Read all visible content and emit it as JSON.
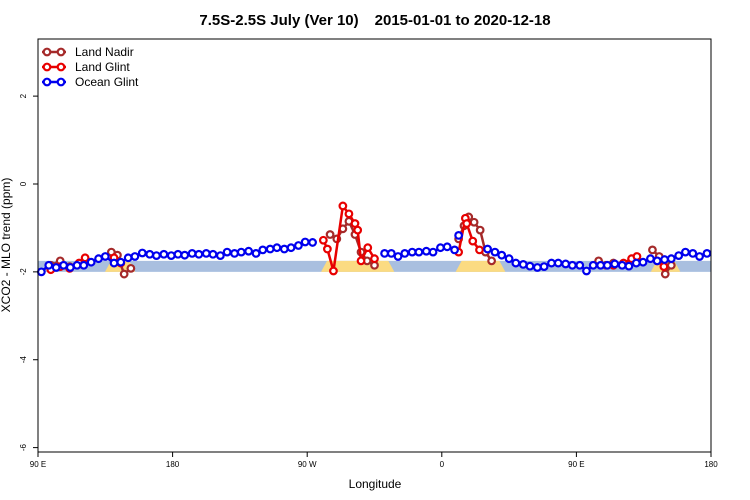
{
  "chart_data": {
    "type": "line",
    "title_part1": "7.5S-2.5S July (Ver 10)",
    "title_part2": "2015-01-01 to 2020-12-18",
    "xlabel": "Longitude",
    "ylabel": "XCO2 - MLO trend (ppm)",
    "xlim": [
      0,
      100
    ],
    "ylim": [
      -6.1,
      3.3
    ],
    "x_ticks": [
      {
        "pos": 0,
        "label": "90 E"
      },
      {
        "pos": 20,
        "label": "180"
      },
      {
        "pos": 40,
        "label": "90 W"
      },
      {
        "pos": 60,
        "label": "0"
      },
      {
        "pos": 80,
        "label": "90 E"
      },
      {
        "pos": 100,
        "label": "180"
      }
    ],
    "y_ticks": [
      {
        "value": 2,
        "label": "2"
      },
      {
        "value": 0,
        "label": "0"
      },
      {
        "value": -2,
        "label": "-2"
      },
      {
        "value": -4,
        "label": "-4"
      },
      {
        "value": -6,
        "label": "-6"
      }
    ],
    "legend": {
      "position": "top-left",
      "entries": [
        "Land Nadir",
        "Land Glint",
        "Ocean Glint"
      ]
    },
    "surface_band": {
      "y_range": [
        -2.0,
        -1.75
      ],
      "colors": {
        "ocean": "#a9bfdf",
        "land": "#fbdb82"
      },
      "land_segments": [
        [
          10.4,
          14
        ],
        [
          42.5,
          52.5
        ],
        [
          62.5,
          69
        ],
        [
          91.5,
          95
        ]
      ]
    },
    "series": [
      {
        "name": "Land Nadir",
        "color": "#a52a2a",
        "segments": [
          [
            [
              1.9,
              -1.85
            ],
            [
              3.3,
              -1.75
            ],
            [
              4.7,
              -1.88
            ],
            [
              6.1,
              -1.82
            ],
            [
              7.0,
              -1.73
            ]
          ],
          [
            [
              10.9,
              -1.55
            ],
            [
              11.8,
              -1.62
            ],
            [
              12.8,
              -2.05
            ],
            [
              13.8,
              -1.92
            ]
          ],
          [
            [
              43.4,
              -1.15
            ],
            [
              44.4,
              -1.25
            ],
            [
              45.3,
              -1.02
            ],
            [
              46.2,
              -0.85
            ],
            [
              47.1,
              -1.15
            ],
            [
              48.0,
              -1.55
            ],
            [
              48.9,
              -1.75
            ],
            [
              50.0,
              -1.85
            ]
          ],
          [
            [
              62.5,
              -1.25
            ],
            [
              63.3,
              -0.95
            ],
            [
              64.0,
              -0.75
            ],
            [
              64.8,
              -0.87
            ],
            [
              65.7,
              -1.05
            ],
            [
              66.5,
              -1.55
            ],
            [
              67.4,
              -1.75
            ]
          ],
          [
            [
              83.3,
              -1.75
            ],
            [
              84.4,
              -1.85
            ],
            [
              85.5,
              -1.8
            ]
          ],
          [
            [
              91.3,
              -1.5
            ],
            [
              92.3,
              -1.65
            ],
            [
              93.2,
              -2.05
            ],
            [
              94.1,
              -1.85
            ]
          ]
        ]
      },
      {
        "name": "Land Glint",
        "color": "#e80000",
        "segments": [
          [
            [
              1.9,
              -1.95
            ],
            [
              3.3,
              -1.88
            ],
            [
              4.7,
              -1.92
            ],
            [
              6.1,
              -1.8
            ],
            [
              7.0,
              -1.68
            ]
          ],
          [
            [
              11.3,
              -1.68
            ],
            [
              12.3,
              -1.8
            ]
          ],
          [
            [
              42.4,
              -1.28
            ],
            [
              43.0,
              -1.48
            ],
            [
              43.9,
              -1.98
            ],
            [
              45.3,
              -0.5
            ],
            [
              46.2,
              -0.68
            ],
            [
              47.1,
              -0.9
            ],
            [
              47.5,
              -1.05
            ],
            [
              48.0,
              -1.75
            ],
            [
              49.0,
              -1.45
            ],
            [
              50.0,
              -1.7
            ]
          ],
          [
            [
              62.5,
              -1.55
            ],
            [
              63.5,
              -0.78
            ],
            [
              63.7,
              -0.9
            ],
            [
              64.6,
              -1.3
            ],
            [
              65.6,
              -1.5
            ]
          ],
          [
            [
              85.5,
              -1.85
            ],
            [
              87.0,
              -1.8
            ],
            [
              88.2,
              -1.7
            ],
            [
              89.0,
              -1.65
            ]
          ],
          [
            [
              92.0,
              -1.75
            ],
            [
              93.0,
              -1.88
            ]
          ]
        ]
      },
      {
        "name": "Ocean Glint",
        "color": "#0000ee",
        "segments": [
          [
            [
              0.5,
              -2.0
            ],
            [
              1.6,
              -1.85
            ],
            [
              2.7,
              -1.9
            ],
            [
              3.8,
              -1.85
            ],
            [
              4.8,
              -1.9
            ],
            [
              5.8,
              -1.85
            ],
            [
              6.8,
              -1.85
            ],
            [
              7.9,
              -1.78
            ],
            [
              9.0,
              -1.7
            ],
            [
              10.0,
              -1.65
            ],
            [
              11.3,
              -1.8
            ],
            [
              12.3,
              -1.78
            ],
            [
              13.4,
              -1.68
            ],
            [
              14.4,
              -1.65
            ],
            [
              15.5,
              -1.57
            ],
            [
              16.6,
              -1.6
            ],
            [
              17.6,
              -1.63
            ],
            [
              18.7,
              -1.6
            ],
            [
              19.8,
              -1.63
            ],
            [
              20.8,
              -1.6
            ],
            [
              21.8,
              -1.62
            ],
            [
              22.9,
              -1.58
            ],
            [
              23.9,
              -1.6
            ],
            [
              25.0,
              -1.58
            ],
            [
              26.0,
              -1.6
            ],
            [
              27.1,
              -1.63
            ],
            [
              28.1,
              -1.55
            ],
            [
              29.2,
              -1.58
            ],
            [
              30.2,
              -1.55
            ],
            [
              31.3,
              -1.53
            ],
            [
              32.4,
              -1.58
            ],
            [
              33.4,
              -1.5
            ],
            [
              34.5,
              -1.48
            ],
            [
              35.5,
              -1.45
            ],
            [
              36.6,
              -1.48
            ],
            [
              37.6,
              -1.45
            ],
            [
              38.7,
              -1.4
            ],
            [
              39.7,
              -1.32
            ],
            [
              40.8,
              -1.33
            ]
          ],
          [
            [
              51.5,
              -1.58
            ],
            [
              52.5,
              -1.58
            ],
            [
              53.5,
              -1.65
            ],
            [
              54.5,
              -1.58
            ],
            [
              55.6,
              -1.55
            ],
            [
              56.6,
              -1.55
            ],
            [
              57.7,
              -1.53
            ],
            [
              58.7,
              -1.55
            ],
            [
              59.8,
              -1.45
            ],
            [
              60.8,
              -1.43
            ],
            [
              61.9,
              -1.5
            ]
          ],
          [
            [
              62.5,
              -1.17
            ]
          ],
          [
            [
              66.8,
              -1.48
            ],
            [
              67.9,
              -1.55
            ],
            [
              68.9,
              -1.62
            ],
            [
              70.0,
              -1.7
            ],
            [
              71.0,
              -1.8
            ],
            [
              72.1,
              -1.83
            ],
            [
              73.1,
              -1.87
            ],
            [
              74.2,
              -1.9
            ],
            [
              75.2,
              -1.88
            ],
            [
              76.3,
              -1.8
            ],
            [
              77.3,
              -1.8
            ],
            [
              78.4,
              -1.82
            ],
            [
              79.4,
              -1.85
            ],
            [
              80.5,
              -1.85
            ],
            [
              81.5,
              -1.98
            ],
            [
              82.5,
              -1.85
            ],
            [
              83.6,
              -1.85
            ],
            [
              84.6,
              -1.85
            ],
            [
              85.7,
              -1.82
            ],
            [
              86.8,
              -1.85
            ],
            [
              87.8,
              -1.87
            ],
            [
              88.9,
              -1.8
            ],
            [
              89.9,
              -1.78
            ],
            [
              91.0,
              -1.7
            ],
            [
              92.0,
              -1.75
            ],
            [
              93.1,
              -1.72
            ],
            [
              94.1,
              -1.7
            ],
            [
              95.2,
              -1.63
            ],
            [
              96.2,
              -1.55
            ],
            [
              97.3,
              -1.58
            ],
            [
              98.3,
              -1.65
            ],
            [
              99.4,
              -1.58
            ]
          ]
        ]
      }
    ]
  }
}
